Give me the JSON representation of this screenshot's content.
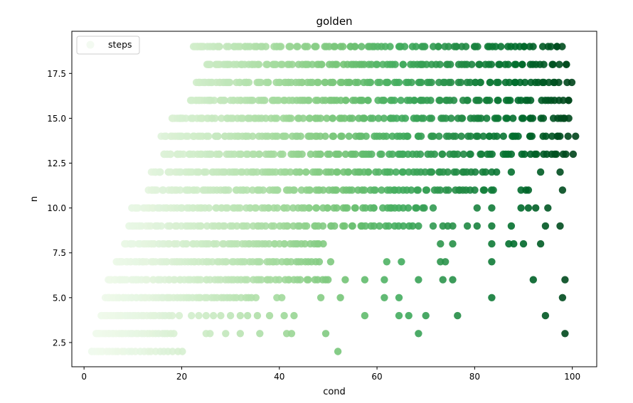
{
  "chart_data": {
    "type": "scatter",
    "title": "golden",
    "xlabel": "cond",
    "ylabel": "n",
    "xlim": [
      -2.5,
      105
    ],
    "ylim": [
      1.15,
      19.85
    ],
    "xticks": [
      0,
      20,
      40,
      60,
      80,
      100
    ],
    "xtick_labels": [
      "0",
      "20",
      "40",
      "60",
      "80",
      "100"
    ],
    "yticks": [
      2.5,
      5.0,
      7.5,
      10.0,
      12.5,
      15.0,
      17.5
    ],
    "ytick_labels": [
      "2.5",
      "5.0",
      "7.5",
      "10.0",
      "12.5",
      "15.0",
      "17.5"
    ],
    "grid": false,
    "legend_position": "upper-left",
    "colormap": "Greens",
    "color_low": "#f1f9ee",
    "color_high": "#00541f",
    "series": [
      {
        "name": "steps",
        "color_by": "cond",
        "rows": [
          {
            "n": 2,
            "xmin": 1.5,
            "xmax": 20,
            "count": 28,
            "extra": [
              52
            ]
          },
          {
            "n": 3,
            "xmin": 2.5,
            "xmax": 18.5,
            "count": 34,
            "extra": [
              25,
              25.8,
              29,
              32,
              36,
              41.5,
              42.5,
              49.5,
              68.5,
              98.5
            ]
          },
          {
            "n": 4,
            "xmin": 3.5,
            "xmax": 18,
            "count": 30,
            "extra": [
              19.5,
              22,
              23.5,
              25,
              26.5,
              28,
              30,
              32,
              33.5,
              35.5,
              38,
              41,
              43,
              57.5,
              64.5,
              66.5,
              70,
              76.5,
              94.5
            ]
          },
          {
            "n": 5,
            "xmin": 4.5,
            "xmax": 35,
            "count": 58,
            "extra": [
              39.5,
              40.5,
              48.5,
              52.5,
              61.5,
              64.5,
              83.5,
              98
            ]
          },
          {
            "n": 6,
            "xmin": 5,
            "xmax": 50,
            "count": 78,
            "extra": [
              53.5,
              57.5,
              61.5,
              68.5,
              73.5,
              75.5,
              92,
              98.5
            ]
          },
          {
            "n": 7,
            "xmin": 6.5,
            "xmax": 48,
            "count": 80,
            "extra": [
              50.5,
              62,
              65,
              73,
              74,
              83.5
            ]
          },
          {
            "n": 8,
            "xmin": 8.5,
            "xmax": 49,
            "count": 78,
            "extra": [
              73,
              75.5,
              83.5,
              87,
              88,
              90,
              93.5
            ]
          },
          {
            "n": 9,
            "xmin": 9.5,
            "xmax": 67,
            "count": 85,
            "extra": [
              68.5,
              71.5,
              73.5,
              74.5,
              75.5,
              78.5,
              80.5,
              83.5,
              87.5,
              94.5,
              97.5
            ]
          },
          {
            "n": 10,
            "xmin": 10,
            "xmax": 70,
            "count": 95,
            "extra": [
              71.5,
              80.5,
              83.5,
              89.5,
              91,
              92.5,
              95
            ]
          },
          {
            "n": 11,
            "xmin": 13.5,
            "xmax": 84,
            "count": 110,
            "extra": [
              89.5,
              90.5,
              91,
              98
            ]
          },
          {
            "n": 12,
            "xmin": 14,
            "xmax": 84,
            "count": 115,
            "extra": [
              87.5,
              93.5,
              97.5
            ]
          },
          {
            "n": 13,
            "xmin": 16.5,
            "xmax": 100,
            "count": 120,
            "extra": []
          },
          {
            "n": 14,
            "xmin": 16.5,
            "xmax": 100,
            "count": 120,
            "extra": []
          },
          {
            "n": 15,
            "xmin": 18,
            "xmax": 100,
            "count": 120,
            "extra": []
          },
          {
            "n": 16,
            "xmin": 22.5,
            "xmax": 100,
            "count": 120,
            "extra": []
          },
          {
            "n": 17,
            "xmin": 23.5,
            "xmax": 99.5,
            "count": 120,
            "extra": []
          },
          {
            "n": 18,
            "xmin": 25,
            "xmax": 99,
            "count": 115,
            "extra": []
          },
          {
            "n": 19,
            "xmin": 22.5,
            "xmax": 98,
            "count": 112,
            "extra": []
          }
        ]
      }
    ]
  }
}
